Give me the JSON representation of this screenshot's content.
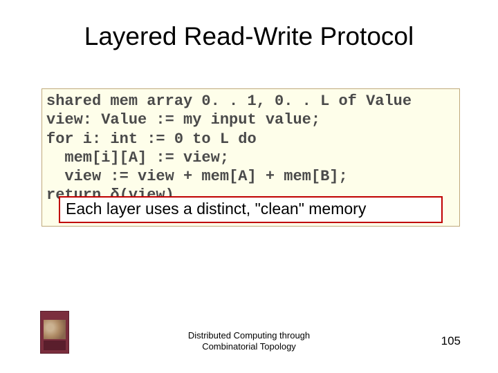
{
  "slide": {
    "title": "Layered Read-Write Protocol",
    "title_fontsize": 37,
    "title_color": "#000000",
    "code": {
      "lines": [
        "shared mem array 0. . 1, 0. . L of Value",
        "view: Value := my input value;",
        "for i: int := 0 to L do",
        "  mem[i][A] := view;",
        "  view := view + mem[A] + mem[B];",
        "return δ(view)"
      ],
      "font_family": "Courier New",
      "fontsize": 22,
      "font_weight": "bold",
      "text_color": "#4a4a4a",
      "background_color": "#fefeea",
      "border_color": "#bfa97a"
    },
    "callout": {
      "text": "Each layer uses a distinct, \"clean\" memory",
      "fontsize": 23,
      "text_color": "#000000",
      "border_color": "#c00000",
      "border_width": 2,
      "background_color": "#ffffff"
    },
    "footer": {
      "line1": "Distributed Computing through",
      "line2": "Combinatorial Topology",
      "fontsize": 13,
      "color": "#000000"
    },
    "page_number": "105",
    "page_number_fontsize": 17,
    "background_color": "#ffffff"
  }
}
